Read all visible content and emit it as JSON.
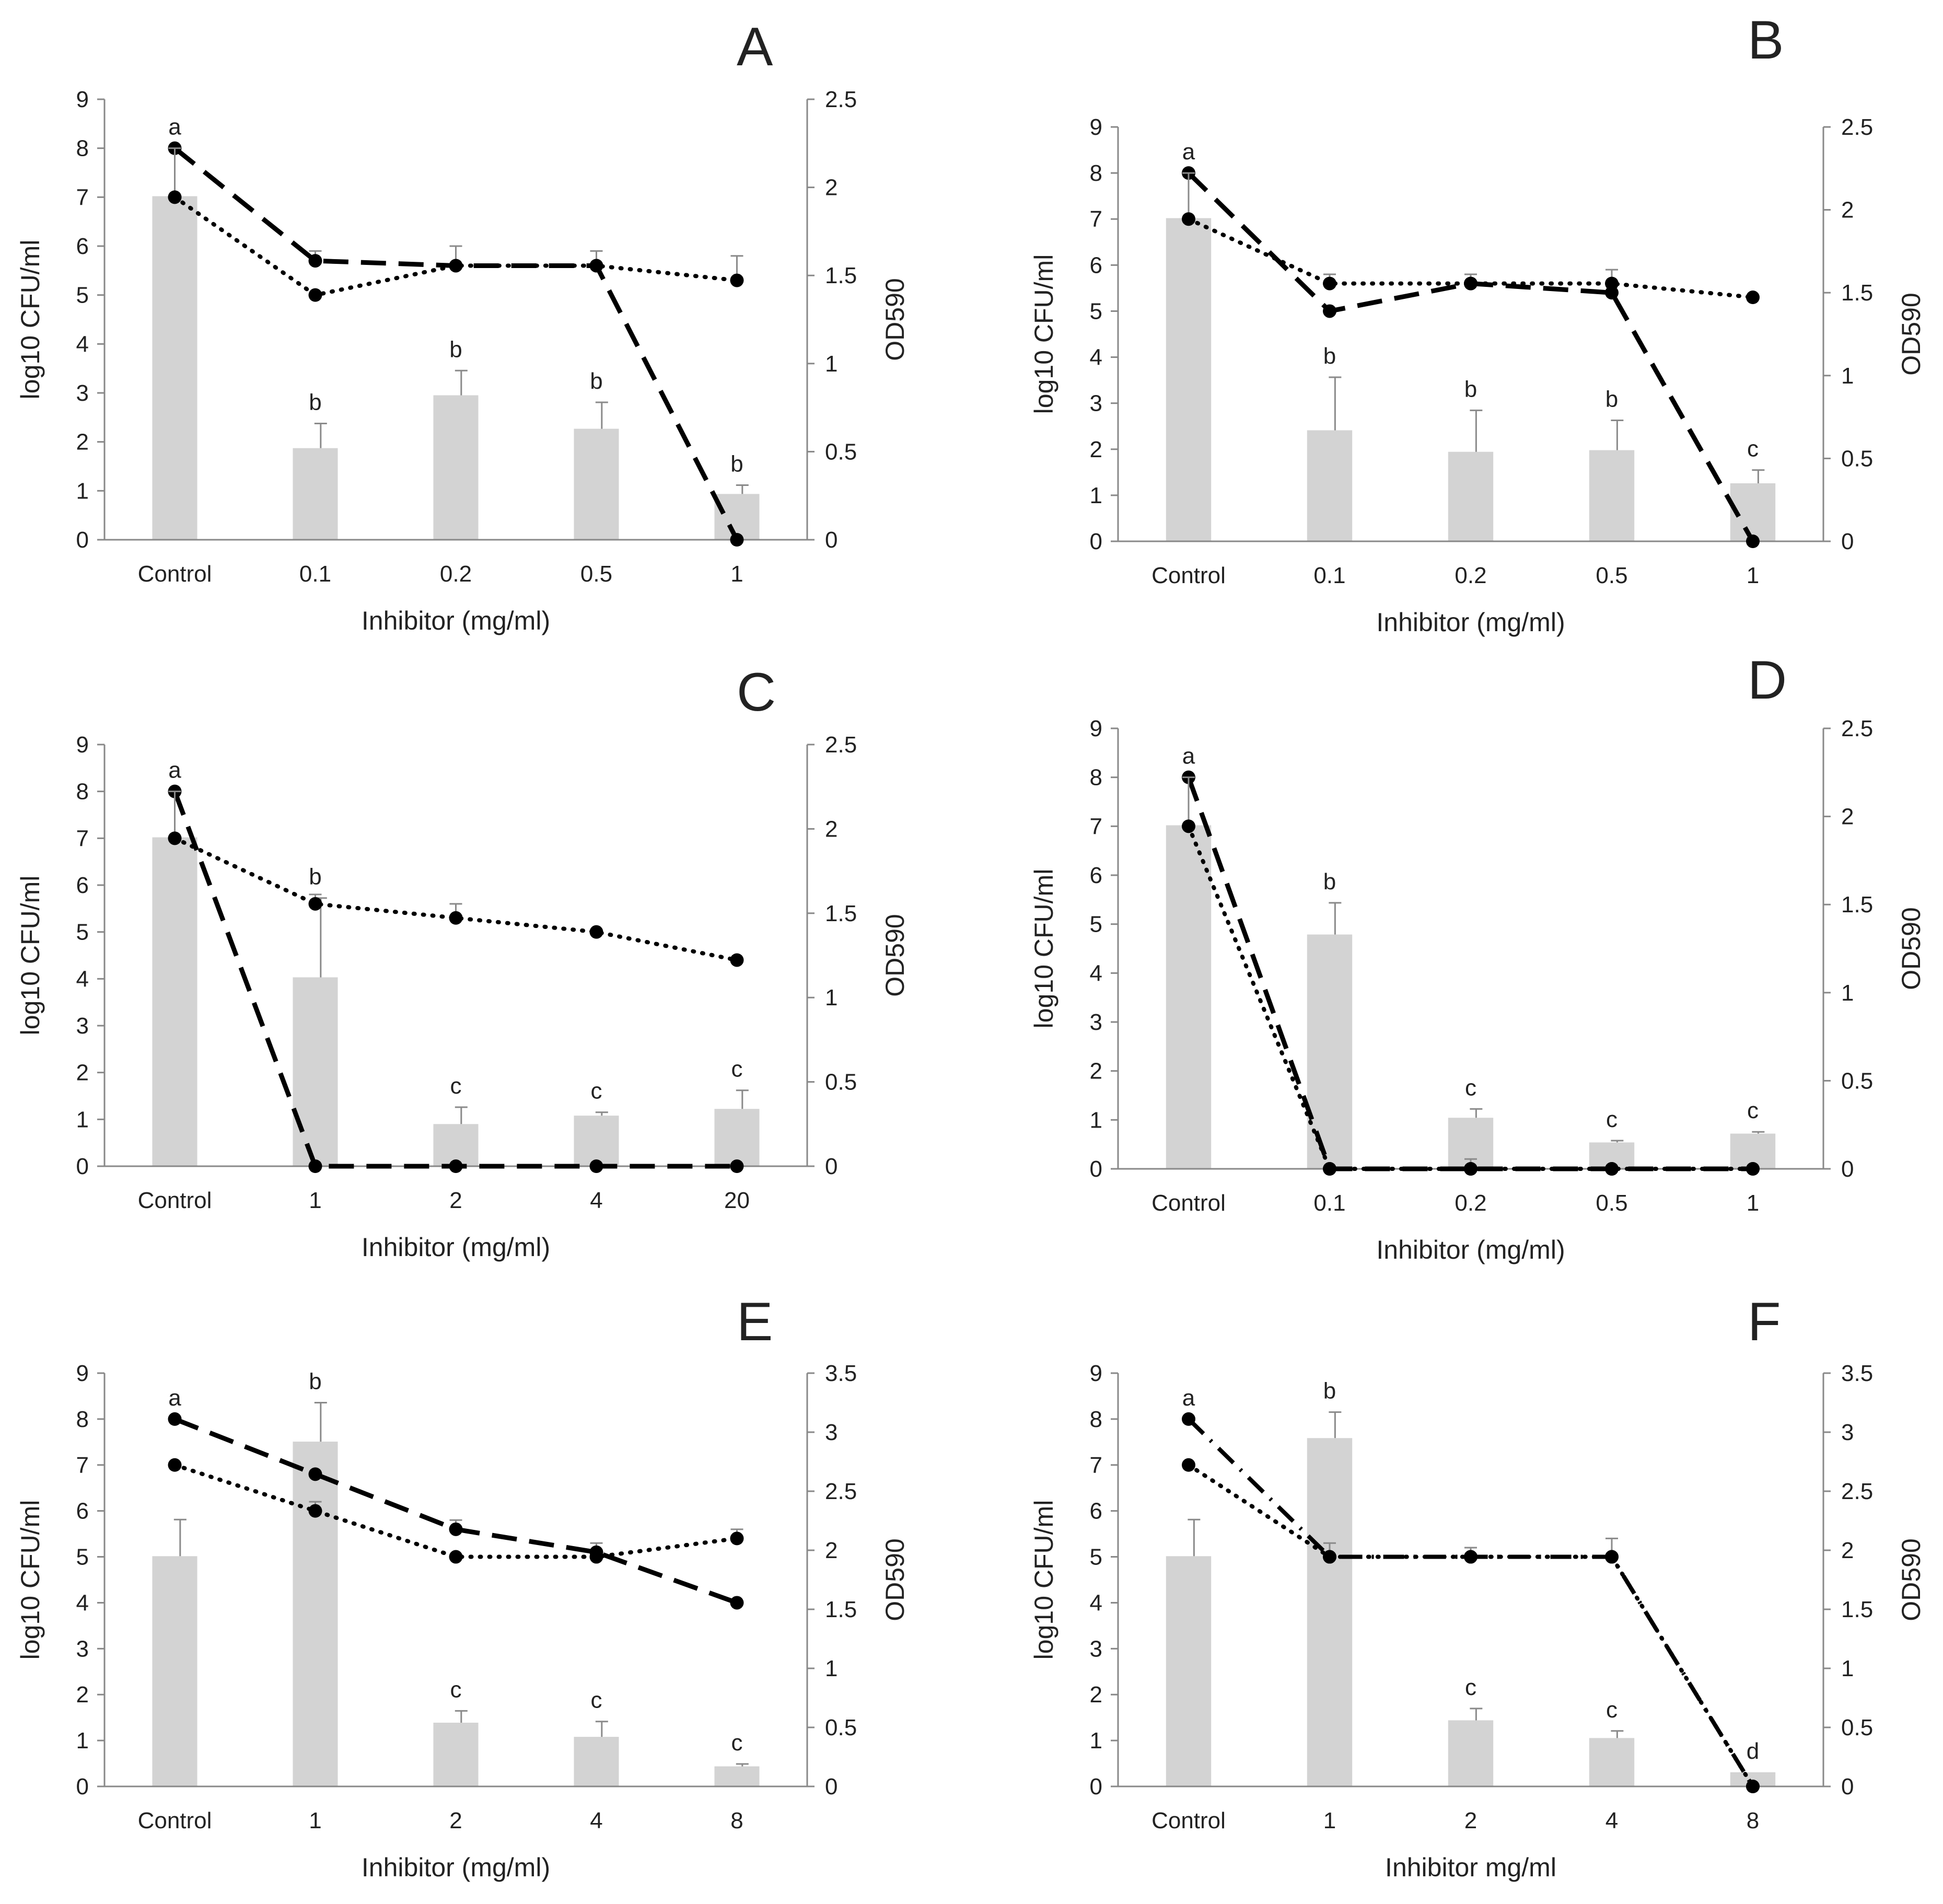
{
  "chart_data": [
    {
      "panel": "A",
      "type": "bar",
      "categories": [
        "Control",
        "0.1",
        "0.2",
        "0.5",
        "1"
      ],
      "xlabel": "Inhibitor (mg/ml)",
      "ylabel": "log10 CFU/ml",
      "y2label": "OD590",
      "ylim": [
        0,
        9
      ],
      "yticks": [
        0,
        1,
        2,
        3,
        4,
        5,
        6,
        7,
        8,
        9
      ],
      "y2lim": [
        0,
        2.5
      ],
      "y2ticks": [
        0,
        0.5,
        1,
        1.5,
        2,
        2.5
      ],
      "bars": {
        "axis": "right",
        "values": [
          1.95,
          0.52,
          0.82,
          0.63,
          0.26
        ],
        "errors": [
          0.0,
          0.14,
          0.14,
          0.15,
          0.05
        ],
        "labels": [
          "a",
          "b",
          "b",
          "b",
          "b"
        ]
      },
      "series": [
        {
          "name": "dashed",
          "style": "dashed",
          "axis": "left",
          "values": [
            8.0,
            5.7,
            5.6,
            5.6,
            0.0
          ],
          "errors": [
            0,
            0.2,
            0.4,
            0.3,
            0
          ]
        },
        {
          "name": "dotted",
          "style": "dotted",
          "axis": "left",
          "values": [
            7.0,
            5.0,
            5.6,
            5.6,
            5.3
          ],
          "errors": [
            1.0,
            0,
            0,
            0,
            0.5
          ]
        }
      ]
    },
    {
      "panel": "B",
      "type": "bar",
      "categories": [
        "Control",
        "0.1",
        "0.2",
        "0.5",
        "1"
      ],
      "xlabel": "Inhibitor (mg/ml)",
      "ylabel": "log10 CFU/ml",
      "y2label": "OD590",
      "ylim": [
        0,
        9
      ],
      "yticks": [
        0,
        1,
        2,
        3,
        4,
        5,
        6,
        7,
        8,
        9
      ],
      "y2lim": [
        0,
        2.5
      ],
      "y2ticks": [
        0,
        0.5,
        1,
        1.5,
        2,
        2.5
      ],
      "bars": {
        "axis": "right",
        "values": [
          1.95,
          0.67,
          0.54,
          0.55,
          0.35
        ],
        "errors": [
          0.0,
          0.32,
          0.25,
          0.18,
          0.08
        ],
        "labels": [
          "a",
          "b",
          "b",
          "b",
          "c"
        ]
      },
      "series": [
        {
          "name": "dashed",
          "style": "dashed",
          "axis": "left",
          "values": [
            8.0,
            5.0,
            5.6,
            5.4,
            0.0
          ],
          "errors": [
            0,
            0,
            0.2,
            0.5,
            0
          ]
        },
        {
          "name": "dotted",
          "style": "dotted",
          "axis": "left",
          "values": [
            7.0,
            5.6,
            5.6,
            5.6,
            5.3
          ],
          "errors": [
            1.0,
            0.2,
            0,
            0,
            0
          ]
        }
      ]
    },
    {
      "panel": "C",
      "type": "bar",
      "categories": [
        "Control",
        "1",
        "2",
        "4",
        "20"
      ],
      "xlabel": "Inhibitor (mg/ml)",
      "ylabel": "log10 CFU/ml",
      "y2label": "OD590",
      "ylim": [
        0,
        9
      ],
      "yticks": [
        0,
        1,
        2,
        3,
        4,
        5,
        6,
        7,
        8,
        9
      ],
      "y2lim": [
        0,
        2.5
      ],
      "y2ticks": [
        0,
        0.5,
        1,
        1.5,
        2,
        2.5
      ],
      "bars": {
        "axis": "right",
        "values": [
          1.95,
          1.12,
          0.25,
          0.3,
          0.34
        ],
        "errors": [
          0.0,
          0.47,
          0.1,
          0.02,
          0.11
        ],
        "labels": [
          "a",
          "b",
          "c",
          "c",
          "c"
        ]
      },
      "series": [
        {
          "name": "dashed",
          "style": "dashed",
          "axis": "left",
          "values": [
            8.0,
            0.0,
            0.0,
            0.0,
            0.0
          ],
          "errors": [
            0,
            0,
            0,
            0,
            0
          ]
        },
        {
          "name": "dotted",
          "style": "dotted",
          "axis": "left",
          "values": [
            7.0,
            5.6,
            5.3,
            5.0,
            4.4
          ],
          "errors": [
            1.0,
            0.2,
            0.3,
            0,
            0
          ]
        }
      ]
    },
    {
      "panel": "D",
      "type": "bar",
      "categories": [
        "Control",
        "0.1",
        "0.2",
        "0.5",
        "1"
      ],
      "xlabel": "Inhibitor (mg/ml)",
      "ylabel": "log10 CFU/ml",
      "y2label": "OD590",
      "ylim": [
        0,
        9
      ],
      "yticks": [
        0,
        1,
        2,
        3,
        4,
        5,
        6,
        7,
        8,
        9
      ],
      "y2lim": [
        0,
        2.5
      ],
      "y2ticks": [
        0,
        0.5,
        1,
        1.5,
        2,
        2.5
      ],
      "bars": {
        "axis": "right",
        "values": [
          1.95,
          1.33,
          0.29,
          0.15,
          0.2
        ],
        "errors": [
          0.0,
          0.18,
          0.05,
          0.01,
          0.01
        ],
        "labels": [
          "a",
          "b",
          "c",
          "c",
          "c"
        ]
      },
      "series": [
        {
          "name": "dashed",
          "style": "dashed",
          "axis": "left",
          "values": [
            8.0,
            0.0,
            0.0,
            0.0,
            0.0
          ],
          "errors": [
            0,
            0,
            0.2,
            0,
            0
          ]
        },
        {
          "name": "dotted",
          "style": "dotted",
          "axis": "left",
          "values": [
            7.0,
            0.0,
            0.0,
            0.0,
            0.0
          ],
          "errors": [
            1.0,
            0,
            0,
            0,
            0
          ]
        }
      ]
    },
    {
      "panel": "E",
      "type": "bar",
      "categories": [
        "Control",
        "1",
        "2",
        "4",
        "8"
      ],
      "xlabel": "Inhibitor (mg/ml)",
      "ylabel": "log10 CFU/ml",
      "y2label": "OD590",
      "ylim": [
        0,
        9
      ],
      "yticks": [
        0,
        1,
        2,
        3,
        4,
        5,
        6,
        7,
        8,
        9
      ],
      "y2lim": [
        0,
        3.5
      ],
      "y2ticks": [
        0,
        0.5,
        1,
        1.5,
        2,
        2.5,
        3,
        3.5
      ],
      "bars": {
        "axis": "right",
        "values": [
          1.95,
          2.92,
          0.54,
          0.42,
          0.17
        ],
        "errors": [
          0.31,
          0.33,
          0.1,
          0.13,
          0.02
        ],
        "labels": [
          "a",
          "b",
          "c",
          "c",
          "c"
        ]
      },
      "series": [
        {
          "name": "dashed",
          "style": "dashed",
          "axis": "left",
          "values": [
            8.0,
            6.8,
            5.6,
            5.1,
            4.0
          ],
          "errors": [
            0,
            0,
            0.2,
            0.2,
            0
          ]
        },
        {
          "name": "dotted",
          "style": "dotted",
          "axis": "left",
          "values": [
            7.0,
            6.0,
            5.0,
            5.0,
            5.4
          ],
          "errors": [
            0,
            0.2,
            0,
            0,
            0.2
          ]
        }
      ]
    },
    {
      "panel": "F",
      "type": "bar",
      "categories": [
        "Control",
        "1",
        "2",
        "4",
        "8"
      ],
      "xlabel": "Inhibitor mg/ml",
      "ylabel": "log10 CFU/ml",
      "y2label": "OD590",
      "ylim": [
        0,
        9
      ],
      "yticks": [
        0,
        1,
        2,
        3,
        4,
        5,
        6,
        7,
        8,
        9
      ],
      "y2lim": [
        0,
        3.5
      ],
      "y2ticks": [
        0,
        0.5,
        1,
        1.5,
        2,
        2.5,
        3,
        3.5
      ],
      "bars": {
        "axis": "right",
        "values": [
          1.95,
          2.95,
          0.56,
          0.41,
          0.12
        ],
        "errors": [
          0.31,
          0.22,
          0.1,
          0.06,
          0.0
        ],
        "labels": [
          "a",
          "b",
          "c",
          "c",
          "d"
        ]
      },
      "series": [
        {
          "name": "dashed",
          "style": "dashdot",
          "axis": "left",
          "values": [
            8.0,
            5.0,
            5.0,
            5.0,
            0.0
          ],
          "errors": [
            0,
            0.3,
            0.2,
            0.4,
            0
          ]
        },
        {
          "name": "dotted",
          "style": "dotted",
          "axis": "left",
          "values": [
            7.0,
            5.0,
            5.0,
            5.0,
            0.0
          ],
          "errors": [
            0,
            0,
            0,
            0,
            0
          ]
        }
      ]
    }
  ]
}
